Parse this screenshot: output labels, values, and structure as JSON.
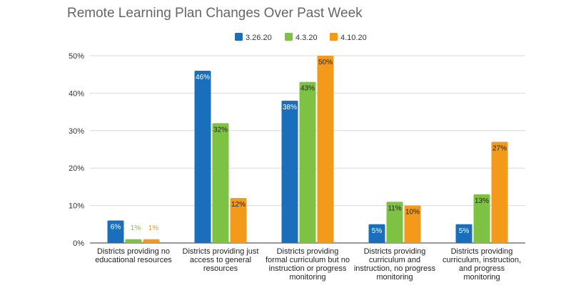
{
  "chart_data": {
    "type": "bar",
    "title": "Remote Learning Plan Changes Over Past Week",
    "categories": [
      [
        "Districts providing no",
        "educational resources"
      ],
      [
        "Districts providing just",
        "access to general",
        "resources"
      ],
      [
        "Districts providing",
        "formal curriculum but no",
        "instruction or progress",
        "monitoring"
      ],
      [
        "Districts providing",
        "curriculum and",
        "instruction, no progress",
        "monitoring"
      ],
      [
        "Districts providing",
        "curriculum, instruction,",
        "and progress",
        "monitoring"
      ]
    ],
    "series": [
      {
        "name": "3.26.20",
        "color": "#1a6fbd",
        "label_color": "#ffffff",
        "values": [
          6,
          46,
          38,
          5,
          5
        ],
        "labels": [
          "6%",
          "46%",
          "38%",
          "5%",
          "5%"
        ]
      },
      {
        "name": "4.3.20",
        "color": "#7dc242",
        "label_color": "#222222",
        "values": [
          1,
          32,
          43,
          11,
          13
        ],
        "labels": [
          "1%",
          "32%",
          "43%",
          "11%",
          "13%"
        ]
      },
      {
        "name": "4.10.20",
        "color": "#f39a1b",
        "label_color": "#222222",
        "values": [
          1,
          12,
          50,
          10,
          27
        ],
        "labels": [
          "1%",
          "12%",
          "50%",
          "10%",
          "27%"
        ]
      }
    ],
    "outside_label_colors": [
      "#1a6fbd",
      "#7dc242",
      "#f39a1b"
    ],
    "ylim": [
      0,
      50
    ],
    "yticks": [
      "0%",
      "10%",
      "20%",
      "30%",
      "40%",
      "50%"
    ],
    "ytick_values": [
      0,
      10,
      20,
      30,
      40,
      50
    ],
    "legend_position": "top",
    "grid": true
  }
}
